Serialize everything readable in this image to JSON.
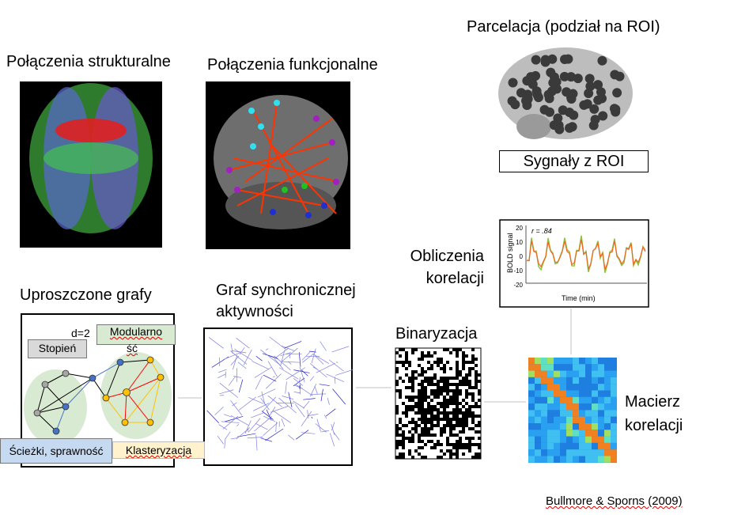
{
  "titles": {
    "structural": "Połączenia strukturalne",
    "functional": "Połączenia funkcjonalne",
    "parcellation": "Parcelacja (podział na ROI)",
    "roi_signals": "Sygnały z ROI",
    "correlation_calc_1": "Obliczenia",
    "correlation_calc_2": "korelacji",
    "simplified_graphs": "Uproszczone grafy",
    "sync_graph_1": "Graf synchronicznej",
    "sync_graph_2": "aktywności",
    "binarization": "Binaryzacja",
    "corr_matrix_1": "Macierz",
    "corr_matrix_2": "korelacji"
  },
  "graph_labels": {
    "degree": "Stopień",
    "distance": "d=2",
    "modularity_1": "Modularno",
    "modularity_2": "ść",
    "paths": "Ścieżki, sprawność",
    "clustering": "Klasteryzacja"
  },
  "bold_chart": {
    "ylabel": "BOLD signal",
    "xlabel": "Time (min)",
    "r_label": "r = .84",
    "yticks": [
      "20",
      "10",
      "0",
      "-10",
      "-20"
    ]
  },
  "citation": "Bullmore & Sporns (2009)",
  "colors": {
    "degree_box": "#d9d9d9",
    "modularity_box": "#d9ead3",
    "paths_box": "#c5d9f1",
    "clustering_box": "#fff2cc",
    "module_fill": "#d9ead3",
    "node_gray": "#a6a6a6",
    "node_blue": "#4472c4",
    "node_yellow": "#ffc000",
    "edge_red": "#ff0000"
  }
}
